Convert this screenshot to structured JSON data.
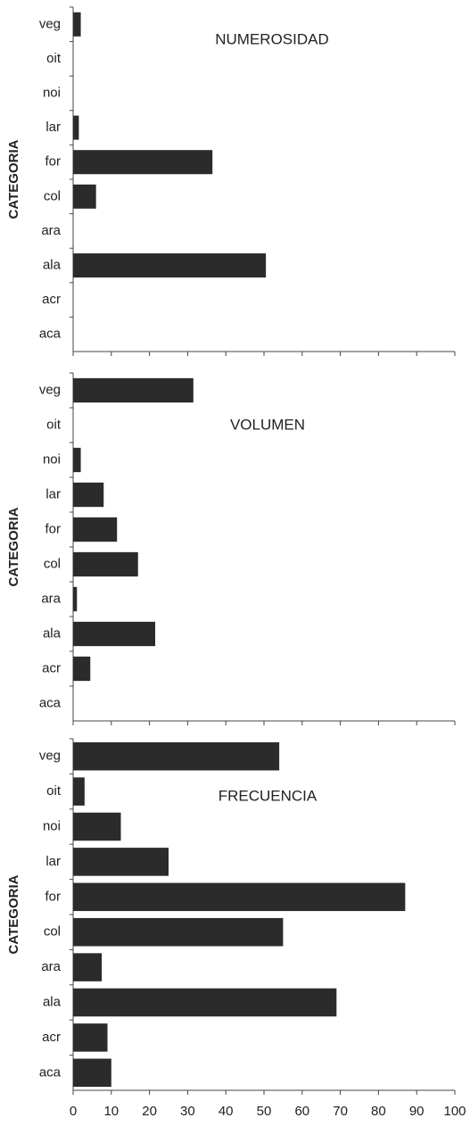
{
  "chart_data": [
    {
      "type": "barh",
      "title": "NUMEROSIDAD",
      "y_label": "CATEGORIA",
      "color": "#2b2b2b",
      "categories": [
        "veg",
        "oit",
        "noi",
        "lar",
        "for",
        "col",
        "ara",
        "ala",
        "acr",
        "aca"
      ],
      "values": [
        2,
        0,
        0,
        1.5,
        36.5,
        6,
        0,
        50.5,
        0,
        0
      ],
      "xlim": [
        0,
        100
      ]
    },
    {
      "type": "barh",
      "title": "VOLUMEN",
      "y_label": "CATEGORIA",
      "color": "#2b2b2b",
      "categories": [
        "veg",
        "oit",
        "noi",
        "lar",
        "for",
        "col",
        "ara",
        "ala",
        "acr",
        "aca"
      ],
      "values": [
        31.5,
        0,
        2,
        8,
        11.5,
        17,
        1,
        21.5,
        4.5,
        0
      ],
      "xlim": [
        0,
        100
      ]
    },
    {
      "type": "barh",
      "title": "FRECUENCIA",
      "y_label": "CATEGORIA",
      "color": "#2b2b2b",
      "categories": [
        "veg",
        "oit",
        "noi",
        "lar",
        "for",
        "col",
        "ara",
        "ala",
        "acr",
        "aca"
      ],
      "values": [
        54,
        3,
        12.5,
        25,
        87,
        55,
        7.5,
        69,
        9,
        10
      ],
      "xlim": [
        0,
        100
      ],
      "xticks": [
        0,
        10,
        20,
        30,
        40,
        50,
        60,
        70,
        80,
        90,
        100
      ]
    }
  ]
}
